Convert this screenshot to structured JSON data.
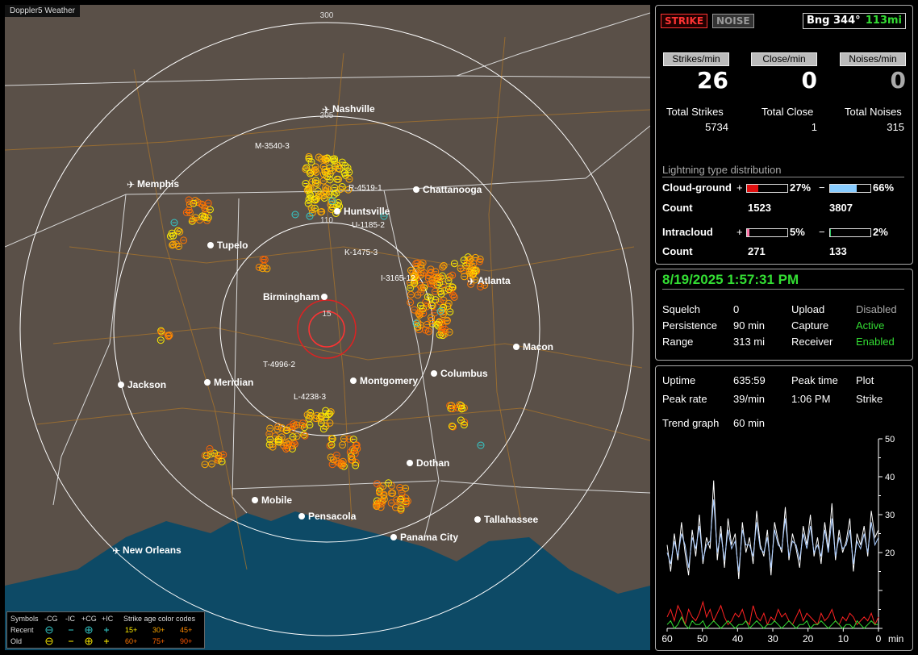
{
  "app_title": "Doppler5 Weather",
  "map": {
    "range_labels": [
      "300",
      "205",
      "110",
      "15"
    ],
    "cities": [
      {
        "name": "Nashville",
        "marker": "plane"
      },
      {
        "name": "Memphis",
        "marker": "plane"
      },
      {
        "name": "Chattanooga",
        "marker": "dot"
      },
      {
        "name": "Huntsville",
        "marker": "dot"
      },
      {
        "name": "Tupelo",
        "marker": "dot"
      },
      {
        "name": "Atlanta",
        "marker": "plane"
      },
      {
        "name": "Birmingham",
        "marker": "dot"
      },
      {
        "name": "Macon",
        "marker": "dot"
      },
      {
        "name": "Jackson",
        "marker": "dot"
      },
      {
        "name": "Meridian",
        "marker": "dot"
      },
      {
        "name": "Montgomery",
        "marker": "dot"
      },
      {
        "name": "Columbus",
        "marker": "dot"
      },
      {
        "name": "Dothan",
        "marker": "dot"
      },
      {
        "name": "Mobile",
        "marker": "dot"
      },
      {
        "name": "Pensacola",
        "marker": "dot"
      },
      {
        "name": "Tallahassee",
        "marker": "dot"
      },
      {
        "name": "Panama City",
        "marker": "dot"
      },
      {
        "name": "New Orleans",
        "marker": "plane"
      }
    ],
    "cell_labels": [
      "M-3540-3",
      "R-4519-1",
      "U-1185-2",
      "K-1475-3",
      "I-3165-12",
      "T-4996-2",
      "L-4238-3"
    ]
  },
  "legend": {
    "symbols_label": "Symbols",
    "type_headers": [
      "-CG",
      "-IC",
      "+CG",
      "+IC"
    ],
    "recent_label": "Recent",
    "old_label": "Old",
    "age_header": "Strike age color codes",
    "recent_ages": [
      "15+",
      "30+",
      "45+"
    ],
    "old_ages": [
      "60+",
      "75+",
      "90+"
    ],
    "age_colors": [
      "#ffee00",
      "#ffaa00",
      "#ff8800",
      "#ff7700",
      "#ff6600",
      "#ff5500"
    ]
  },
  "panel1": {
    "strike_btn": "STRIKE",
    "noise_btn": "NOISE",
    "bearing_label": "Bng 344°",
    "bearing_dist": "113mi",
    "rate_headers": [
      "Strikes/min",
      "Close/min",
      "Noises/min"
    ],
    "rates": [
      "26",
      "0",
      "0"
    ],
    "total_labels": [
      "Total Strikes",
      "Total Close",
      "Total Noises"
    ],
    "totals": [
      "5734",
      "1",
      "315"
    ],
    "dist_title": "Lightning type distribution",
    "cloud_ground": {
      "label": "Cloud-ground",
      "pos_pct": "27%",
      "neg_pct": "66%",
      "pos_frac": 0.27,
      "neg_frac": 0.66,
      "pos_color": "#e01010",
      "neg_color": "#88ccff"
    },
    "count_label": "Count",
    "cg_counts": [
      "1523",
      "3807"
    ],
    "intracloud": {
      "label": "Intracloud",
      "pos_pct": "5%",
      "neg_pct": "2%",
      "pos_frac": 0.05,
      "neg_frac": 0.02,
      "pos_color": "#ff77aa",
      "neg_color": "#33cc66"
    },
    "ic_counts": [
      "271",
      "133"
    ],
    "plus": "+",
    "minus": "−"
  },
  "panel2": {
    "datetime": "8/19/2025 1:57:31 PM",
    "rows": [
      {
        "k": "Squelch",
        "v": "0",
        "k2": "Upload",
        "v2": "Disabled",
        "v2_color": "#aaaaaa"
      },
      {
        "k": "Persistence",
        "v": "90 min",
        "k2": "Capture",
        "v2": "Active",
        "v2_color": "#33dd33"
      },
      {
        "k": "Range",
        "v": "313 mi",
        "k2": "Receiver",
        "v2": "Enabled",
        "v2_color": "#33dd33"
      }
    ]
  },
  "panel3": {
    "uptime_label": "Uptime",
    "uptime": "635:59",
    "peak_time_label": "Peak time",
    "plot_label": "Plot",
    "peak_rate_label": "Peak rate",
    "peak_rate": "39/min",
    "peak_time": "1:06 PM",
    "plot_value": "Strike",
    "trend_label": "Trend graph",
    "trend_value": "60 min"
  },
  "chart_data": {
    "type": "line",
    "x_ticks": [
      "60",
      "50",
      "40",
      "30",
      "20",
      "10",
      "0"
    ],
    "x_unit": "min",
    "y_ticks": [
      "20",
      "30",
      "40",
      "50"
    ],
    "ylim": [
      0,
      50
    ],
    "xlim": [
      60,
      0
    ],
    "series": [
      {
        "color": "#ffffff",
        "values": [
          22,
          15,
          25,
          18,
          28,
          20,
          14,
          26,
          19,
          30,
          17,
          24,
          21,
          39,
          18,
          27,
          16,
          29,
          22,
          25,
          13,
          28,
          20,
          24,
          17,
          31,
          22,
          19,
          26,
          14,
          28,
          23,
          20,
          32,
          18,
          25,
          21,
          16,
          27,
          22,
          30,
          19,
          24,
          17,
          28,
          21,
          33,
          18,
          26,
          20,
          23,
          29,
          15,
          25,
          22,
          27,
          19,
          31,
          24,
          26
        ]
      },
      {
        "color": "#aaccff",
        "values": [
          20,
          17,
          23,
          19,
          25,
          22,
          16,
          24,
          21,
          27,
          18,
          22,
          23,
          34,
          20,
          25,
          18,
          26,
          21,
          23,
          15,
          26,
          22,
          22,
          19,
          28,
          21,
          20,
          24,
          16,
          26,
          22,
          21,
          29,
          19,
          23,
          22,
          18,
          25,
          21,
          27,
          20,
          22,
          19,
          26,
          20,
          29,
          19,
          24,
          21,
          22,
          26,
          17,
          23,
          21,
          25,
          20,
          28,
          22,
          24
        ]
      },
      {
        "color": "#ff2222",
        "values": [
          3,
          5,
          2,
          6,
          4,
          1,
          5,
          3,
          2,
          4,
          7,
          3,
          5,
          2,
          4,
          6,
          3,
          1,
          2,
          4,
          3,
          5,
          2,
          1,
          6,
          3,
          2,
          4,
          1,
          3,
          2,
          5,
          3,
          4,
          2,
          1,
          3,
          5,
          2,
          4,
          3,
          2,
          1,
          4,
          2,
          3,
          5,
          2,
          1,
          3,
          2,
          4,
          3,
          1,
          2,
          3,
          2,
          4,
          1,
          3
        ]
      },
      {
        "color": "#33dd33",
        "values": [
          1,
          2,
          0,
          1,
          3,
          1,
          0,
          2,
          1,
          1,
          2,
          0,
          1,
          2,
          1,
          0,
          1,
          2,
          1,
          0,
          1,
          1,
          2,
          0,
          1,
          2,
          1,
          0,
          1,
          1,
          2,
          1,
          0,
          1,
          2,
          1,
          0,
          1,
          1,
          2,
          0,
          1,
          1,
          2,
          1,
          0,
          1,
          2,
          1,
          0,
          1,
          1,
          0,
          2,
          1,
          0,
          1,
          2,
          1,
          1
        ]
      }
    ]
  }
}
